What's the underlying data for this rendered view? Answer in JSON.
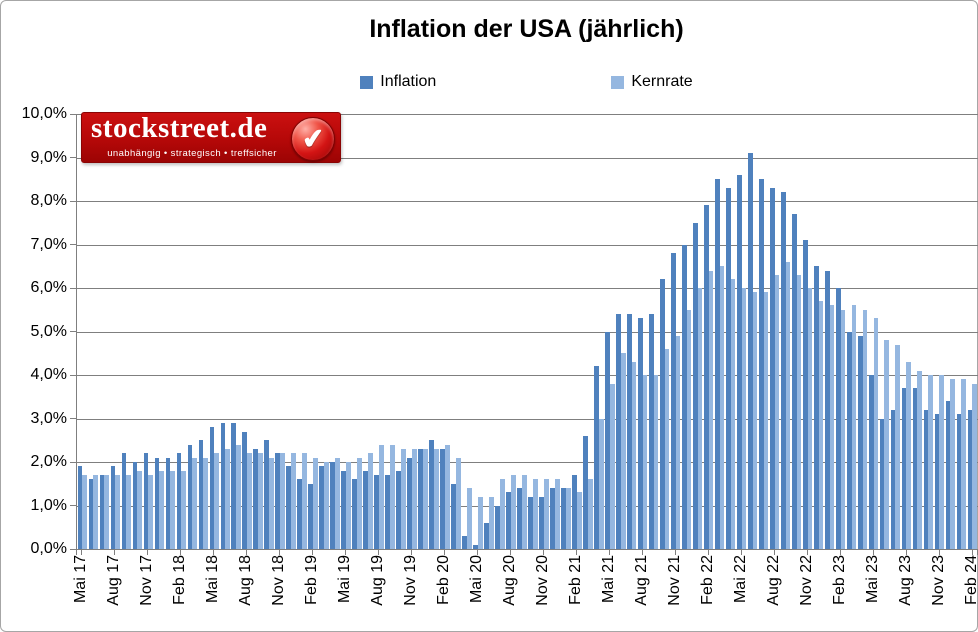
{
  "title": "Inflation der USA (jährlich)",
  "logo": {
    "name": "stockstreet.de",
    "tagline": "unabhängig • strategisch • treffsicher"
  },
  "icons": {
    "checkmark": "✔"
  },
  "colors": {
    "inflation_bar": "#4F81BD",
    "kernrate_bar": "#95B7E0",
    "gridline": "#7F7F7F",
    "logo_red": "#B50808"
  },
  "chart_data": {
    "type": "bar",
    "title": "Inflation der USA (jährlich)",
    "categories": [
      "Mai 17",
      "Jun 17",
      "Jul 17",
      "Aug 17",
      "Sep 17",
      "Okt 17",
      "Nov 17",
      "Dez 17",
      "Jan 18",
      "Feb 18",
      "Mär 18",
      "Apr 18",
      "Mai 18",
      "Jun 18",
      "Jul 18",
      "Aug 18",
      "Sep 18",
      "Okt 18",
      "Nov 18",
      "Dez 18",
      "Jan 19",
      "Feb 19",
      "Mär 19",
      "Apr 19",
      "Mai 19",
      "Jun 19",
      "Jul 19",
      "Aug 19",
      "Sep 19",
      "Okt 19",
      "Nov 19",
      "Dez 19",
      "Jan 20",
      "Feb 20",
      "Mär 20",
      "Apr 20",
      "Mai 20",
      "Jun 20",
      "Jul 20",
      "Aug 20",
      "Sep 20",
      "Okt 20",
      "Nov 20",
      "Dez 20",
      "Jan 21",
      "Feb 21",
      "Mär 21",
      "Apr 21",
      "Mai 21",
      "Jun 21",
      "Jul 21",
      "Aug 21",
      "Sep 21",
      "Okt 21",
      "Nov 21",
      "Dez 21",
      "Jan 22",
      "Feb 22",
      "Mär 22",
      "Apr 22",
      "Mai 22",
      "Jun 22",
      "Jul 22",
      "Aug 22",
      "Sep 22",
      "Okt 22",
      "Nov 22",
      "Dez 22",
      "Jan 23",
      "Feb 23",
      "Mär 23",
      "Apr 23",
      "Mai 23",
      "Jun 23",
      "Jul 23",
      "Aug 23",
      "Sep 23",
      "Okt 23",
      "Nov 23",
      "Dez 23",
      "Jan 24",
      "Feb 24"
    ],
    "series": [
      {
        "name": "Inflation",
        "color": "#4F81BD",
        "values": [
          1.9,
          1.6,
          1.7,
          1.9,
          2.2,
          2.0,
          2.2,
          2.1,
          2.1,
          2.2,
          2.4,
          2.5,
          2.8,
          2.9,
          2.9,
          2.7,
          2.3,
          2.5,
          2.2,
          1.9,
          1.6,
          1.5,
          1.9,
          2.0,
          1.8,
          1.6,
          1.8,
          1.7,
          1.7,
          1.8,
          2.1,
          2.3,
          2.5,
          2.3,
          1.5,
          0.3,
          0.1,
          0.6,
          1.0,
          1.3,
          1.4,
          1.2,
          1.2,
          1.4,
          1.4,
          1.7,
          2.6,
          4.2,
          5.0,
          5.4,
          5.4,
          5.3,
          5.4,
          6.2,
          6.8,
          7.0,
          7.5,
          7.9,
          8.5,
          8.3,
          8.6,
          9.1,
          8.5,
          8.3,
          8.2,
          7.7,
          7.1,
          6.5,
          6.4,
          6.0,
          5.0,
          4.9,
          4.0,
          3.0,
          3.2,
          3.7,
          3.7,
          3.2,
          3.1,
          3.4,
          3.1,
          3.2
        ]
      },
      {
        "name": "Kernrate",
        "color": "#95B7E0",
        "values": [
          1.7,
          1.7,
          1.7,
          1.7,
          1.7,
          1.8,
          1.7,
          1.8,
          1.8,
          1.8,
          2.1,
          2.1,
          2.2,
          2.3,
          2.4,
          2.2,
          2.2,
          2.1,
          2.2,
          2.2,
          2.2,
          2.1,
          2.0,
          2.1,
          2.0,
          2.1,
          2.2,
          2.4,
          2.4,
          2.3,
          2.3,
          2.3,
          2.3,
          2.4,
          2.1,
          1.4,
          1.2,
          1.2,
          1.6,
          1.7,
          1.7,
          1.6,
          1.6,
          1.6,
          1.4,
          1.3,
          1.6,
          3.0,
          3.8,
          4.5,
          4.3,
          4.0,
          4.0,
          4.6,
          4.9,
          5.5,
          6.0,
          6.4,
          6.5,
          6.2,
          6.0,
          5.9,
          5.9,
          6.3,
          6.6,
          6.3,
          6.0,
          5.7,
          5.6,
          5.5,
          5.6,
          5.5,
          5.3,
          4.8,
          4.7,
          4.3,
          4.1,
          4.0,
          4.0,
          3.9,
          3.9,
          3.8
        ]
      }
    ],
    "ylim": [
      0,
      10
    ],
    "y_tick_labels": [
      "0,0%",
      "1,0%",
      "2,0%",
      "3,0%",
      "4,0%",
      "5,0%",
      "6,0%",
      "7,0%",
      "8,0%",
      "9,0%",
      "10,0%"
    ],
    "x_tick_labels": [
      "Mai 17",
      "Aug 17",
      "Nov 17",
      "Feb 18",
      "Mai 18",
      "Aug 18",
      "Nov 18",
      "Feb 19",
      "Mai 19",
      "Aug 19",
      "Nov 19",
      "Feb 20",
      "Mai 20",
      "Aug 20",
      "Nov 20",
      "Feb 21",
      "Mai 21",
      "Aug 21",
      "Nov 21",
      "Feb 22",
      "Mai 22",
      "Aug 22",
      "Nov 22",
      "Feb 23",
      "Mai 23",
      "Aug 23",
      "Nov 23",
      "Feb 24"
    ],
    "x_tick_every": 3,
    "grid": "horizontal",
    "legend_position": "top"
  }
}
